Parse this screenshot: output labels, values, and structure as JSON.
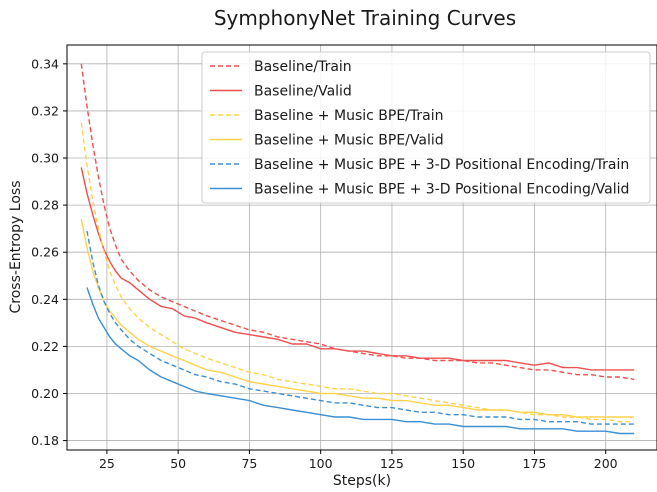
{
  "chart_data": {
    "type": "line",
    "title": "SymphonyNet Training Curves",
    "xlabel": "Steps(k)",
    "ylabel": "Cross-Entropy Loss",
    "xlim": [
      11,
      218
    ],
    "ylim": [
      0.176,
      0.348
    ],
    "xticks": [
      25,
      50,
      75,
      100,
      125,
      150,
      175,
      200
    ],
    "yticks": [
      0.18,
      0.2,
      0.22,
      0.24,
      0.26,
      0.28,
      0.3,
      0.32,
      0.34
    ],
    "ytick_labels": [
      "0.18",
      "0.20",
      "0.22",
      "0.24",
      "0.26",
      "0.28",
      "0.30",
      "0.32",
      "0.34"
    ],
    "grid": true,
    "legend_position": "top-right",
    "series": [
      {
        "name": "Baseline/Train",
        "color": "#ef4f4f",
        "dashed": true,
        "x": [
          16,
          18,
          20,
          22,
          24,
          26,
          28,
          30,
          33,
          36,
          40,
          44,
          48,
          52,
          56,
          60,
          65,
          70,
          75,
          80,
          85,
          90,
          95,
          100,
          105,
          110,
          115,
          120,
          125,
          130,
          135,
          140,
          145,
          150,
          155,
          160,
          165,
          170,
          175,
          180,
          185,
          190,
          195,
          200,
          205,
          210
        ],
        "y": [
          0.34,
          0.322,
          0.306,
          0.292,
          0.28,
          0.27,
          0.263,
          0.257,
          0.252,
          0.248,
          0.244,
          0.241,
          0.239,
          0.237,
          0.235,
          0.233,
          0.231,
          0.229,
          0.227,
          0.226,
          0.224,
          0.223,
          0.222,
          0.221,
          0.219,
          0.218,
          0.217,
          0.216,
          0.216,
          0.215,
          0.215,
          0.214,
          0.214,
          0.214,
          0.213,
          0.213,
          0.212,
          0.211,
          0.21,
          0.21,
          0.209,
          0.208,
          0.208,
          0.207,
          0.207,
          0.206
        ]
      },
      {
        "name": "Baseline/Valid",
        "color": "#ef4f4f",
        "dashed": false,
        "x": [
          16,
          18,
          20,
          22,
          24,
          26,
          28,
          30,
          33,
          36,
          40,
          44,
          48,
          52,
          56,
          60,
          65,
          70,
          75,
          80,
          85,
          90,
          95,
          100,
          105,
          110,
          115,
          120,
          125,
          130,
          135,
          140,
          145,
          150,
          155,
          160,
          165,
          170,
          175,
          180,
          185,
          190,
          195,
          200,
          205,
          210
        ],
        "y": [
          0.296,
          0.285,
          0.276,
          0.268,
          0.261,
          0.256,
          0.252,
          0.249,
          0.247,
          0.244,
          0.24,
          0.237,
          0.236,
          0.233,
          0.232,
          0.23,
          0.228,
          0.226,
          0.225,
          0.224,
          0.223,
          0.221,
          0.221,
          0.219,
          0.219,
          0.218,
          0.218,
          0.217,
          0.216,
          0.216,
          0.215,
          0.215,
          0.215,
          0.214,
          0.214,
          0.214,
          0.214,
          0.213,
          0.212,
          0.213,
          0.211,
          0.211,
          0.21,
          0.21,
          0.21,
          0.21
        ]
      },
      {
        "name": "Baseline + Music BPE/Train",
        "color": "#ffd24d",
        "dashed": true,
        "x": [
          16,
          18,
          20,
          22,
          24,
          26,
          28,
          30,
          33,
          36,
          40,
          44,
          48,
          52,
          56,
          60,
          65,
          70,
          75,
          80,
          85,
          90,
          95,
          100,
          105,
          110,
          115,
          120,
          125,
          130,
          135,
          140,
          145,
          150,
          155,
          160,
          165,
          170,
          175,
          180,
          185,
          190,
          195,
          200,
          205,
          210
        ],
        "y": [
          0.315,
          0.297,
          0.282,
          0.27,
          0.26,
          0.252,
          0.246,
          0.241,
          0.236,
          0.232,
          0.228,
          0.225,
          0.222,
          0.219,
          0.217,
          0.215,
          0.213,
          0.211,
          0.209,
          0.208,
          0.206,
          0.205,
          0.204,
          0.203,
          0.202,
          0.202,
          0.201,
          0.2,
          0.2,
          0.199,
          0.198,
          0.197,
          0.196,
          0.195,
          0.194,
          0.193,
          0.193,
          0.192,
          0.191,
          0.191,
          0.19,
          0.19,
          0.189,
          0.189,
          0.188,
          0.188
        ]
      },
      {
        "name": "Baseline + Music BPE/Valid",
        "color": "#ffd24d",
        "dashed": false,
        "x": [
          16,
          18,
          20,
          22,
          24,
          26,
          28,
          30,
          33,
          36,
          40,
          44,
          48,
          52,
          56,
          60,
          65,
          70,
          75,
          80,
          85,
          90,
          95,
          100,
          105,
          110,
          115,
          120,
          125,
          130,
          135,
          140,
          145,
          150,
          155,
          160,
          165,
          170,
          175,
          180,
          185,
          190,
          195,
          200,
          205,
          210
        ],
        "y": [
          0.274,
          0.262,
          0.252,
          0.245,
          0.239,
          0.235,
          0.232,
          0.229,
          0.226,
          0.223,
          0.22,
          0.218,
          0.216,
          0.214,
          0.212,
          0.21,
          0.209,
          0.207,
          0.205,
          0.204,
          0.203,
          0.202,
          0.201,
          0.2,
          0.2,
          0.199,
          0.198,
          0.198,
          0.197,
          0.197,
          0.196,
          0.195,
          0.195,
          0.194,
          0.193,
          0.193,
          0.193,
          0.192,
          0.192,
          0.191,
          0.191,
          0.19,
          0.19,
          0.19,
          0.19,
          0.19
        ]
      },
      {
        "name": "Baseline + Music BPE + 3-D Positional Encoding/Train",
        "color": "#3b8fd4",
        "dashed": true,
        "x": [
          18,
          20,
          22,
          24,
          26,
          28,
          30,
          33,
          36,
          40,
          44,
          48,
          52,
          56,
          60,
          65,
          70,
          75,
          80,
          85,
          90,
          95,
          100,
          105,
          110,
          115,
          120,
          125,
          130,
          135,
          140,
          145,
          150,
          155,
          160,
          165,
          170,
          175,
          180,
          185,
          190,
          195,
          200,
          205,
          210
        ],
        "y": [
          0.269,
          0.256,
          0.246,
          0.239,
          0.234,
          0.23,
          0.227,
          0.223,
          0.22,
          0.217,
          0.214,
          0.212,
          0.21,
          0.208,
          0.207,
          0.205,
          0.204,
          0.202,
          0.201,
          0.2,
          0.199,
          0.198,
          0.197,
          0.196,
          0.196,
          0.195,
          0.194,
          0.194,
          0.193,
          0.192,
          0.192,
          0.191,
          0.191,
          0.19,
          0.19,
          0.19,
          0.189,
          0.189,
          0.188,
          0.188,
          0.188,
          0.187,
          0.187,
          0.187,
          0.187
        ]
      },
      {
        "name": "Baseline + Music BPE + 3-D Positional Encoding/Valid",
        "color": "#3b8fd4",
        "dashed": false,
        "x": [
          18,
          20,
          22,
          24,
          26,
          28,
          30,
          33,
          36,
          40,
          44,
          48,
          52,
          56,
          60,
          65,
          70,
          75,
          80,
          85,
          90,
          95,
          100,
          105,
          110,
          115,
          120,
          125,
          130,
          135,
          140,
          145,
          150,
          155,
          160,
          165,
          170,
          175,
          180,
          185,
          190,
          195,
          200,
          205,
          210
        ],
        "y": [
          0.245,
          0.238,
          0.232,
          0.228,
          0.224,
          0.221,
          0.219,
          0.216,
          0.214,
          0.21,
          0.207,
          0.205,
          0.203,
          0.201,
          0.2,
          0.199,
          0.198,
          0.197,
          0.195,
          0.194,
          0.193,
          0.192,
          0.191,
          0.19,
          0.19,
          0.189,
          0.189,
          0.189,
          0.188,
          0.188,
          0.187,
          0.187,
          0.186,
          0.186,
          0.186,
          0.186,
          0.185,
          0.185,
          0.185,
          0.185,
          0.184,
          0.184,
          0.184,
          0.183,
          0.183
        ]
      }
    ]
  }
}
